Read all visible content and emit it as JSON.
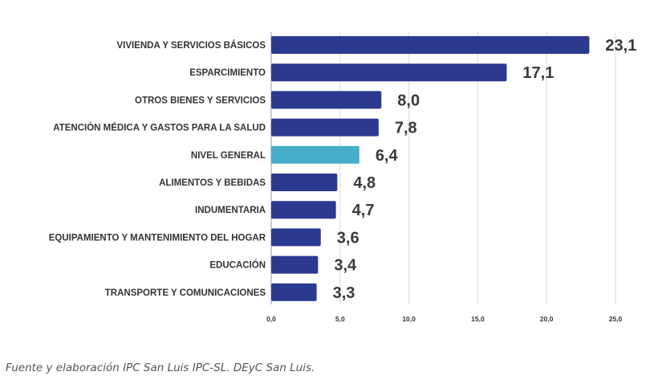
{
  "chart_data": {
    "type": "bar",
    "orientation": "horizontal",
    "categories": [
      "VIVIENDA Y SERVICIOS BÁSICOS",
      "ESPARCIMIENTO",
      "OTROS BIENES Y SERVICIOS",
      "ATENCIÓN MÉDICA Y GASTOS PARA LA SALUD",
      "NIVEL GENERAL",
      "ALIMENTOS Y BEBIDAS",
      "INDUMENTARIA",
      "EQUIPAMIENTO Y MANTENIMIENTO DEL HOGAR",
      "EDUCACIÓN",
      "TRANSPORTE Y COMUNICACIONES"
    ],
    "values": [
      23.1,
      17.1,
      8.0,
      7.8,
      6.4,
      4.8,
      4.7,
      3.6,
      3.4,
      3.3
    ],
    "value_labels": [
      "23,1",
      "17,1",
      "8,0",
      "7,8",
      "6,4",
      "4,8",
      "4,7",
      "3,6",
      "3,4",
      "3,3"
    ],
    "highlight_category": "NIVEL GENERAL",
    "xlim": [
      0,
      25
    ],
    "x_ticks": [
      0,
      5,
      10,
      15,
      20,
      25
    ],
    "x_tick_labels": [
      "0,0",
      "5,0",
      "10,0",
      "15,0",
      "20,0",
      "25,0"
    ],
    "grid": true,
    "colors": {
      "bar": "#2b3990",
      "highlight": "#45afc9",
      "value_text": "#3a3a3a",
      "highlight_text": "#45afc9"
    }
  },
  "source_text": "Fuente y elaboración IPC San Luis IPC-SL. DEyC San Luis."
}
